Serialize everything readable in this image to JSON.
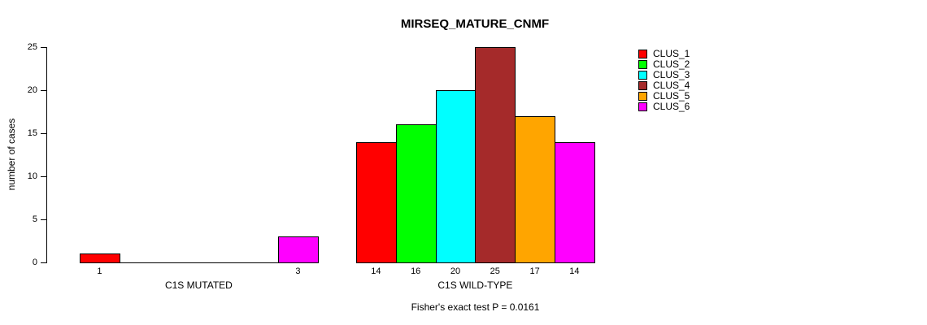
{
  "title": "MIRSEQ_MATURE_CNMF",
  "caption": "Fisher's exact test P = 0.0161",
  "chart_data": {
    "type": "bar",
    "title": "MIRSEQ_MATURE_CNMF",
    "ylabel": "number of cases",
    "xlabel": "",
    "ylim": [
      0,
      25
    ],
    "yticks": [
      0,
      5,
      10,
      15,
      20,
      25
    ],
    "grid": false,
    "legend_position": "right",
    "clusters": [
      {
        "name": "CLUS_1",
        "color": "#FF0000"
      },
      {
        "name": "CLUS_2",
        "color": "#00FF00"
      },
      {
        "name": "CLUS_3",
        "color": "#00FFFF"
      },
      {
        "name": "CLUS_4",
        "color": "#A52A2A"
      },
      {
        "name": "CLUS_5",
        "color": "#FFA500"
      },
      {
        "name": "CLUS_6",
        "color": "#FF00FF"
      }
    ],
    "groups": [
      {
        "label": "C1S MUTATED",
        "values": [
          1,
          0,
          0,
          0,
          0,
          3
        ]
      },
      {
        "label": "C1S WILD-TYPE",
        "values": [
          14,
          16,
          20,
          25,
          17,
          14
        ]
      }
    ],
    "caption": "Fisher's exact test P = 0.0161"
  }
}
